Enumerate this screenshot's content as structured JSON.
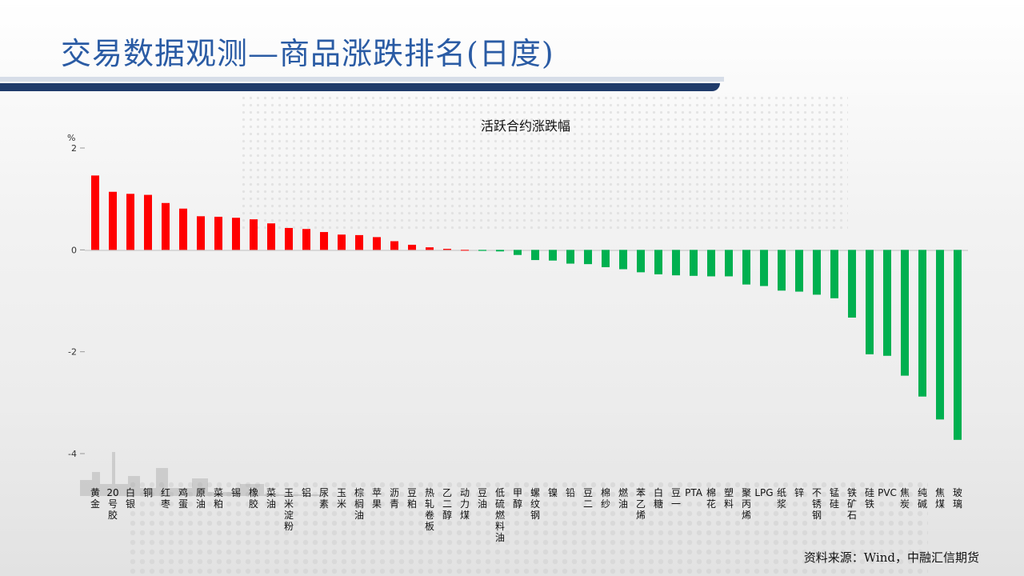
{
  "slide": {
    "title": "交易数据观测—商品涨跌排名(日度)",
    "source": "资料来源：Wind，中融汇信期货"
  },
  "colors": {
    "up": "#ff0000",
    "down": "#00b050",
    "title": "#2a5ba4",
    "rule": "#1f3b6b"
  },
  "chart_data": {
    "type": "bar",
    "title": "活跃合约涨跌幅",
    "ylabel": "%",
    "ylim": [
      -4,
      2
    ],
    "yticks": [
      2,
      0,
      -2,
      -4
    ],
    "grid": false,
    "categories": [
      "黄金",
      "20号胶",
      "白银",
      "铜",
      "红枣",
      "鸡蛋",
      "原油",
      "菜粕",
      "锡",
      "橡胶",
      "菜油",
      "玉米淀粉",
      "铝",
      "尿素",
      "玉米",
      "棕榈油",
      "苹果",
      "沥青",
      "豆粕",
      "热轧卷板",
      "乙二醇",
      "动力煤",
      "豆油",
      "低硫燃料油",
      "甲醇",
      "螺纹钢",
      "镍",
      "铅",
      "豆二",
      "棉纱",
      "燃油",
      "苯乙烯",
      "白糖",
      "豆一",
      "PTA",
      "棉花",
      "塑料",
      "聚丙烯",
      "LPG",
      "纸浆",
      "锌",
      "不锈钢",
      "锰硅",
      "铁矿石",
      "硅铁",
      "PVC",
      "焦炭",
      "纯碱",
      "焦煤",
      "玻璃"
    ],
    "values": [
      1.46,
      1.14,
      1.1,
      1.08,
      0.92,
      0.81,
      0.66,
      0.65,
      0.63,
      0.6,
      0.52,
      0.43,
      0.41,
      0.35,
      0.3,
      0.29,
      0.25,
      0.17,
      0.1,
      0.05,
      0.02,
      0.0,
      -0.02,
      -0.03,
      -0.1,
      -0.2,
      -0.21,
      -0.27,
      -0.28,
      -0.34,
      -0.38,
      -0.44,
      -0.48,
      -0.5,
      -0.51,
      -0.52,
      -0.52,
      -0.68,
      -0.71,
      -0.8,
      -0.82,
      -0.88,
      -0.95,
      -1.33,
      -2.05,
      -2.08,
      -2.47,
      -2.88,
      -3.33,
      -3.73
    ]
  }
}
